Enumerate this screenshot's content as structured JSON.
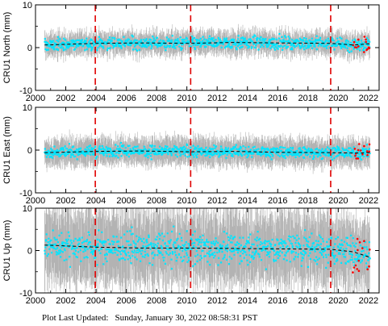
{
  "footer": {
    "label": "Plot Last Updated:",
    "timestamp": "Sunday, January 30, 2022 08:58:31 PST"
  },
  "colors": {
    "error_bars": "#b3b3b3",
    "data_points": "#00e5ff",
    "recent_points": "#ff0000",
    "trend_line": "#000000",
    "event_lines": "#e00000"
  },
  "chart_data": [
    {
      "type": "scatter",
      "ylabel": "CRU1 North (mm)",
      "xlim": [
        2000,
        2022.7
      ],
      "ylim": [
        -10,
        10
      ],
      "xticks": [
        "2000",
        "2002",
        "2004",
        "2006",
        "2008",
        "2010",
        "2012",
        "2014",
        "2016",
        "2018",
        "2020",
        "2022"
      ],
      "yticks": [
        "10",
        "0",
        "-10"
      ],
      "event_lines_x": [
        2003.95,
        2010.25,
        2019.5
      ],
      "series": [
        {
          "role": "observations",
          "x_range": [
            2000.6,
            2022.1
          ],
          "center": 1.0,
          "scatter": 1.3,
          "error_bar": 2.3
        },
        {
          "role": "trend",
          "x": [
            2000.6,
            2004,
            2007,
            2010.2,
            2013,
            2016,
            2019.5,
            2021,
            2022.1
          ],
          "y": [
            0.6,
            1.0,
            1.1,
            1.0,
            1.2,
            1.1,
            1.0,
            0.6,
            0.9
          ]
        },
        {
          "role": "recent",
          "x_range": [
            2020.4,
            2022.1
          ],
          "y_range": [
            -1.5,
            3.0
          ]
        }
      ]
    },
    {
      "type": "scatter",
      "ylabel": "CRU1 East (mm)",
      "xlim": [
        2000,
        2022.7
      ],
      "ylim": [
        -10,
        10
      ],
      "xticks": [
        "2000",
        "2002",
        "2004",
        "2006",
        "2008",
        "2010",
        "2012",
        "2014",
        "2016",
        "2018",
        "2020",
        "2022"
      ],
      "yticks": [
        "10",
        "0",
        "-10"
      ],
      "event_lines_x": [
        2003.95,
        2010.25,
        2019.5
      ],
      "series": [
        {
          "role": "observations",
          "x_range": [
            2000.6,
            2022.1
          ],
          "center": -0.3,
          "scatter": 1.2,
          "error_bar": 2.8
        },
        {
          "role": "trend",
          "x": [
            2000.6,
            2004,
            2007,
            2010.2,
            2013,
            2016,
            2019.5,
            2021,
            2022.1
          ],
          "y": [
            -0.6,
            -0.3,
            -0.2,
            -0.4,
            -0.3,
            -0.5,
            -0.6,
            -0.7,
            -0.6
          ]
        },
        {
          "role": "recent",
          "x_range": [
            2020.4,
            2022.1
          ],
          "y_range": [
            -2.0,
            1.5
          ]
        }
      ]
    },
    {
      "type": "scatter",
      "ylabel": "CRU1 Up (mm)",
      "xlim": [
        2000,
        2022.7
      ],
      "ylim": [
        -10,
        10
      ],
      "xticks": [
        "2000",
        "2002",
        "2004",
        "2006",
        "2008",
        "2010",
        "2012",
        "2014",
        "2016",
        "2018",
        "2020",
        "2022"
      ],
      "yticks": [
        "10",
        "0",
        "-10"
      ],
      "event_lines_x": [
        2003.95,
        2010.25,
        2019.5
      ],
      "series": [
        {
          "role": "observations",
          "x_range": [
            2000.6,
            2022.1
          ],
          "center": 0.5,
          "scatter": 3.2,
          "error_bar": 7.5
        },
        {
          "role": "trend",
          "x": [
            2000.6,
            2004,
            2007,
            2010.2,
            2013,
            2016,
            2019.5,
            2021,
            2022.1
          ],
          "y": [
            1.3,
            0.8,
            0.6,
            0.6,
            0.5,
            0.4,
            0.3,
            -0.3,
            -1.6
          ]
        },
        {
          "role": "recent",
          "x_range": [
            2020.4,
            2022.1
          ],
          "y_range": [
            -5.5,
            3.5
          ]
        }
      ]
    }
  ]
}
